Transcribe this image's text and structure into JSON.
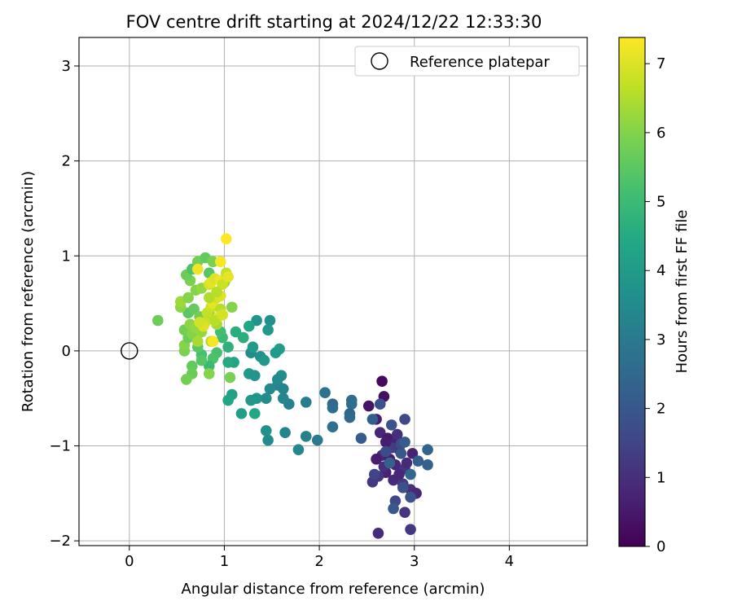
{
  "chart_data": {
    "type": "scatter",
    "title": "FOV centre drift starting at 2024/12/22 12:33:30",
    "xlabel": "Angular distance from reference (arcmin)",
    "ylabel": "Rotation from reference (arcmin)",
    "xlim": [
      -0.53,
      4.82
    ],
    "ylim": [
      -2.05,
      3.3
    ],
    "xticks": [
      0,
      1,
      2,
      3,
      4
    ],
    "yticks": [
      -2,
      -1,
      0,
      1,
      2,
      3
    ],
    "xtick_labels": [
      "0",
      "1",
      "2",
      "3",
      "4"
    ],
    "ytick_labels": [
      "−2",
      "−1",
      "0",
      "1",
      "2",
      "3"
    ],
    "grid": true,
    "legend": {
      "placement": "top-right",
      "entries": [
        {
          "label": "Reference platepar",
          "marker": "open-circle"
        }
      ]
    },
    "reference_point": {
      "x": 0,
      "y": 0
    },
    "colorbar": {
      "label": "Hours from first FF file",
      "colormap": "viridis",
      "range": [
        0,
        7.38
      ],
      "ticks": [
        0,
        1,
        2,
        3,
        4,
        5,
        6,
        7
      ],
      "tick_labels": [
        "0",
        "1",
        "2",
        "3",
        "4",
        "5",
        "6",
        "7"
      ]
    },
    "points": [
      {
        "x": 2.66,
        "y": -0.32,
        "c": 0.2
      },
      {
        "x": 2.68,
        "y": -0.48,
        "c": 0.3
      },
      {
        "x": 2.52,
        "y": -0.58,
        "c": 0.4
      },
      {
        "x": 2.6,
        "y": -0.72,
        "c": 0.6
      },
      {
        "x": 2.64,
        "y": -0.86,
        "c": 0.8
      },
      {
        "x": 2.72,
        "y": -0.92,
        "c": 0.5
      },
      {
        "x": 2.78,
        "y": -0.98,
        "c": 0.7
      },
      {
        "x": 2.84,
        "y": -1.04,
        "c": 1.0
      },
      {
        "x": 2.66,
        "y": -1.1,
        "c": 0.9
      },
      {
        "x": 2.74,
        "y": -1.14,
        "c": 0.6
      },
      {
        "x": 2.8,
        "y": -1.2,
        "c": 0.8
      },
      {
        "x": 2.9,
        "y": -1.24,
        "c": 1.1
      },
      {
        "x": 2.7,
        "y": -1.28,
        "c": 0.7
      },
      {
        "x": 2.62,
        "y": -1.32,
        "c": 1.2
      },
      {
        "x": 2.78,
        "y": -1.36,
        "c": 0.9
      },
      {
        "x": 2.88,
        "y": -1.4,
        "c": 1.3
      },
      {
        "x": 2.96,
        "y": -1.46,
        "c": 1.0
      },
      {
        "x": 3.02,
        "y": -1.5,
        "c": 0.8
      },
      {
        "x": 2.92,
        "y": -1.18,
        "c": 0.9
      },
      {
        "x": 2.98,
        "y": -1.08,
        "c": 0.7
      },
      {
        "x": 2.6,
        "y": -1.14,
        "c": 0.6
      },
      {
        "x": 2.68,
        "y": -1.22,
        "c": 1.0
      },
      {
        "x": 2.84,
        "y": -1.3,
        "c": 0.8
      },
      {
        "x": 2.56,
        "y": -1.38,
        "c": 1.2
      },
      {
        "x": 2.9,
        "y": -1.7,
        "c": 1.1
      },
      {
        "x": 2.62,
        "y": -1.92,
        "c": 0.9
      },
      {
        "x": 2.96,
        "y": -1.88,
        "c": 1.2
      },
      {
        "x": 2.76,
        "y": -1.02,
        "c": 1.3
      },
      {
        "x": 2.82,
        "y": -0.88,
        "c": 1.0
      },
      {
        "x": 2.7,
        "y": -0.96,
        "c": 0.6
      },
      {
        "x": 2.64,
        "y": -0.56,
        "c": 1.8
      },
      {
        "x": 2.76,
        "y": -0.78,
        "c": 1.9
      },
      {
        "x": 2.9,
        "y": -0.72,
        "c": 1.6
      },
      {
        "x": 2.44,
        "y": -0.92,
        "c": 2.1
      },
      {
        "x": 2.7,
        "y": -1.06,
        "c": 1.7
      },
      {
        "x": 2.86,
        "y": -1.08,
        "c": 2.0
      },
      {
        "x": 2.58,
        "y": -1.3,
        "c": 1.5
      },
      {
        "x": 2.88,
        "y": -1.44,
        "c": 1.8
      },
      {
        "x": 2.8,
        "y": -1.58,
        "c": 1.6
      },
      {
        "x": 2.78,
        "y": -1.66,
        "c": 2.0
      },
      {
        "x": 2.96,
        "y": -1.54,
        "c": 1.9
      },
      {
        "x": 3.04,
        "y": -1.16,
        "c": 2.2
      },
      {
        "x": 3.14,
        "y": -1.04,
        "c": 2.4
      },
      {
        "x": 3.14,
        "y": -1.2,
        "c": 2.3
      },
      {
        "x": 2.96,
        "y": -1.3,
        "c": 2.5
      },
      {
        "x": 2.74,
        "y": -1.18,
        "c": 2.3
      },
      {
        "x": 2.86,
        "y": -0.98,
        "c": 1.7
      },
      {
        "x": 2.9,
        "y": -0.96,
        "c": 2.1
      },
      {
        "x": 2.56,
        "y": -0.72,
        "c": 2.2
      },
      {
        "x": 2.34,
        "y": -0.52,
        "c": 2.6
      },
      {
        "x": 2.34,
        "y": -0.56,
        "c": 2.7
      },
      {
        "x": 2.14,
        "y": -0.56,
        "c": 2.5
      },
      {
        "x": 2.14,
        "y": -0.6,
        "c": 2.6
      },
      {
        "x": 2.06,
        "y": -0.44,
        "c": 2.8
      },
      {
        "x": 2.32,
        "y": -0.66,
        "c": 2.4
      },
      {
        "x": 2.32,
        "y": -0.7,
        "c": 2.5
      },
      {
        "x": 2.14,
        "y": -0.8,
        "c": 2.7
      },
      {
        "x": 1.86,
        "y": -0.54,
        "c": 3.1
      },
      {
        "x": 1.68,
        "y": -0.56,
        "c": 3.2
      },
      {
        "x": 1.62,
        "y": -0.5,
        "c": 3.4
      },
      {
        "x": 1.56,
        "y": -0.36,
        "c": 3.3
      },
      {
        "x": 1.48,
        "y": -0.4,
        "c": 3.5
      },
      {
        "x": 1.44,
        "y": -0.5,
        "c": 3.6
      },
      {
        "x": 1.34,
        "y": -0.5,
        "c": 3.8
      },
      {
        "x": 1.28,
        "y": -0.52,
        "c": 3.9
      },
      {
        "x": 1.08,
        "y": -0.46,
        "c": 4.2
      },
      {
        "x": 1.04,
        "y": -0.52,
        "c": 4.3
      },
      {
        "x": 1.18,
        "y": -0.66,
        "c": 4.1
      },
      {
        "x": 1.32,
        "y": -0.66,
        "c": 4.4
      },
      {
        "x": 1.44,
        "y": -0.84,
        "c": 3.7
      },
      {
        "x": 1.46,
        "y": -0.94,
        "c": 3.5
      },
      {
        "x": 1.64,
        "y": -0.86,
        "c": 3.3
      },
      {
        "x": 1.86,
        "y": -0.9,
        "c": 3.2
      },
      {
        "x": 1.98,
        "y": -0.94,
        "c": 3.0
      },
      {
        "x": 1.78,
        "y": -1.04,
        "c": 3.4
      },
      {
        "x": 1.6,
        "y": -0.26,
        "c": 3.6
      },
      {
        "x": 1.56,
        "y": -0.3,
        "c": 3.5
      },
      {
        "x": 1.62,
        "y": -0.4,
        "c": 3.3
      },
      {
        "x": 1.26,
        "y": -0.24,
        "c": 4.0
      },
      {
        "x": 1.32,
        "y": -0.26,
        "c": 3.8
      },
      {
        "x": 1.38,
        "y": -0.06,
        "c": 3.7
      },
      {
        "x": 1.42,
        "y": -0.1,
        "c": 3.9
      },
      {
        "x": 1.28,
        "y": -0.02,
        "c": 3.6
      },
      {
        "x": 1.3,
        "y": 0.04,
        "c": 4.0
      },
      {
        "x": 1.34,
        "y": 0.32,
        "c": 3.8
      },
      {
        "x": 1.48,
        "y": 0.32,
        "c": 3.7
      },
      {
        "x": 1.46,
        "y": 0.22,
        "c": 3.9
      },
      {
        "x": 1.58,
        "y": 0.02,
        "c": 4.1
      },
      {
        "x": 1.54,
        "y": -0.02,
        "c": 4.0
      },
      {
        "x": 1.1,
        "y": -0.12,
        "c": 4.3
      },
      {
        "x": 1.04,
        "y": -0.12,
        "c": 4.5
      },
      {
        "x": 1.26,
        "y": 0.26,
        "c": 4.4
      },
      {
        "x": 1.2,
        "y": 0.14,
        "c": 4.6
      },
      {
        "x": 1.04,
        "y": 0.04,
        "c": 4.7
      },
      {
        "x": 1.12,
        "y": 0.2,
        "c": 4.6
      },
      {
        "x": 0.98,
        "y": 0.14,
        "c": 5.0
      },
      {
        "x": 0.96,
        "y": 0.2,
        "c": 5.1
      },
      {
        "x": 0.92,
        "y": -0.02,
        "c": 5.2
      },
      {
        "x": 0.88,
        "y": -0.08,
        "c": 5.3
      },
      {
        "x": 0.84,
        "y": -0.16,
        "c": 5.0
      },
      {
        "x": 0.76,
        "y": -0.04,
        "c": 5.2
      },
      {
        "x": 0.76,
        "y": -0.1,
        "c": 5.4
      },
      {
        "x": 0.72,
        "y": 0.04,
        "c": 5.5
      },
      {
        "x": 0.66,
        "y": -0.16,
        "c": 5.6
      },
      {
        "x": 0.66,
        "y": -0.24,
        "c": 5.7
      },
      {
        "x": 0.6,
        "y": -0.3,
        "c": 5.8
      },
      {
        "x": 0.84,
        "y": -0.24,
        "c": 6.0
      },
      {
        "x": 1.06,
        "y": -0.28,
        "c": 5.9
      },
      {
        "x": 0.58,
        "y": 0.0,
        "c": 5.9
      },
      {
        "x": 0.58,
        "y": 0.06,
        "c": 6.0
      },
      {
        "x": 0.62,
        "y": 0.14,
        "c": 5.7
      },
      {
        "x": 0.58,
        "y": 0.22,
        "c": 5.8
      },
      {
        "x": 0.66,
        "y": 0.18,
        "c": 6.0
      },
      {
        "x": 0.64,
        "y": 0.28,
        "c": 6.1
      },
      {
        "x": 0.7,
        "y": 0.24,
        "c": 6.2
      },
      {
        "x": 0.62,
        "y": 0.4,
        "c": 5.5
      },
      {
        "x": 0.68,
        "y": 0.44,
        "c": 5.6
      },
      {
        "x": 0.74,
        "y": 0.36,
        "c": 5.8
      },
      {
        "x": 0.84,
        "y": 0.4,
        "c": 6.0
      },
      {
        "x": 0.88,
        "y": 0.34,
        "c": 6.2
      },
      {
        "x": 0.92,
        "y": 0.28,
        "c": 6.4
      },
      {
        "x": 0.54,
        "y": 0.46,
        "c": 6.1
      },
      {
        "x": 0.54,
        "y": 0.52,
        "c": 6.3
      },
      {
        "x": 0.62,
        "y": 0.56,
        "c": 6.0
      },
      {
        "x": 0.3,
        "y": 0.32,
        "c": 5.7
      },
      {
        "x": 0.7,
        "y": 0.64,
        "c": 6.0
      },
      {
        "x": 0.76,
        "y": 0.66,
        "c": 6.2
      },
      {
        "x": 0.64,
        "y": 0.74,
        "c": 5.9
      },
      {
        "x": 0.6,
        "y": 0.8,
        "c": 5.7
      },
      {
        "x": 0.66,
        "y": 0.86,
        "c": 5.3
      },
      {
        "x": 0.72,
        "y": 0.94,
        "c": 5.8
      },
      {
        "x": 0.8,
        "y": 0.98,
        "c": 5.6
      },
      {
        "x": 0.88,
        "y": 0.94,
        "c": 5.9
      },
      {
        "x": 0.84,
        "y": 0.82,
        "c": 5.4
      },
      {
        "x": 1.0,
        "y": 0.72,
        "c": 6.1
      },
      {
        "x": 1.02,
        "y": 0.76,
        "c": 6.3
      },
      {
        "x": 1.08,
        "y": 0.46,
        "c": 6.0
      },
      {
        "x": 0.76,
        "y": 0.2,
        "c": 6.2
      },
      {
        "x": 0.72,
        "y": 0.1,
        "c": 6.4
      },
      {
        "x": 0.86,
        "y": 0.1,
        "c": 6.5
      },
      {
        "x": 0.8,
        "y": 0.3,
        "c": 6.8
      },
      {
        "x": 0.78,
        "y": 0.26,
        "c": 7.0
      },
      {
        "x": 0.74,
        "y": 0.3,
        "c": 6.9
      },
      {
        "x": 0.82,
        "y": 0.4,
        "c": 6.7
      },
      {
        "x": 0.86,
        "y": 0.46,
        "c": 6.8
      },
      {
        "x": 0.88,
        "y": 0.5,
        "c": 7.1
      },
      {
        "x": 0.92,
        "y": 0.56,
        "c": 6.9
      },
      {
        "x": 0.96,
        "y": 0.58,
        "c": 7.0
      },
      {
        "x": 0.96,
        "y": 0.44,
        "c": 6.6
      },
      {
        "x": 0.98,
        "y": 0.38,
        "c": 6.8
      },
      {
        "x": 0.94,
        "y": 0.36,
        "c": 7.2
      },
      {
        "x": 0.84,
        "y": 0.7,
        "c": 6.9
      },
      {
        "x": 0.86,
        "y": 0.72,
        "c": 7.1
      },
      {
        "x": 0.9,
        "y": 0.76,
        "c": 7.0
      },
      {
        "x": 0.96,
        "y": 0.74,
        "c": 7.2
      },
      {
        "x": 0.98,
        "y": 0.7,
        "c": 6.8
      },
      {
        "x": 1.02,
        "y": 0.82,
        "c": 6.7
      },
      {
        "x": 1.04,
        "y": 0.78,
        "c": 7.1
      },
      {
        "x": 0.96,
        "y": 0.94,
        "c": 7.3
      },
      {
        "x": 0.84,
        "y": 0.56,
        "c": 6.5
      },
      {
        "x": 1.02,
        "y": 1.18,
        "c": 7.38
      },
      {
        "x": 0.72,
        "y": 0.86,
        "c": 7.2
      },
      {
        "x": 0.88,
        "y": 0.1,
        "c": 7.3
      },
      {
        "x": 0.9,
        "y": 0.32,
        "c": 6.6
      },
      {
        "x": 0.98,
        "y": 0.38,
        "c": 6.9
      },
      {
        "x": 0.92,
        "y": 0.62,
        "c": 6.6
      }
    ]
  }
}
